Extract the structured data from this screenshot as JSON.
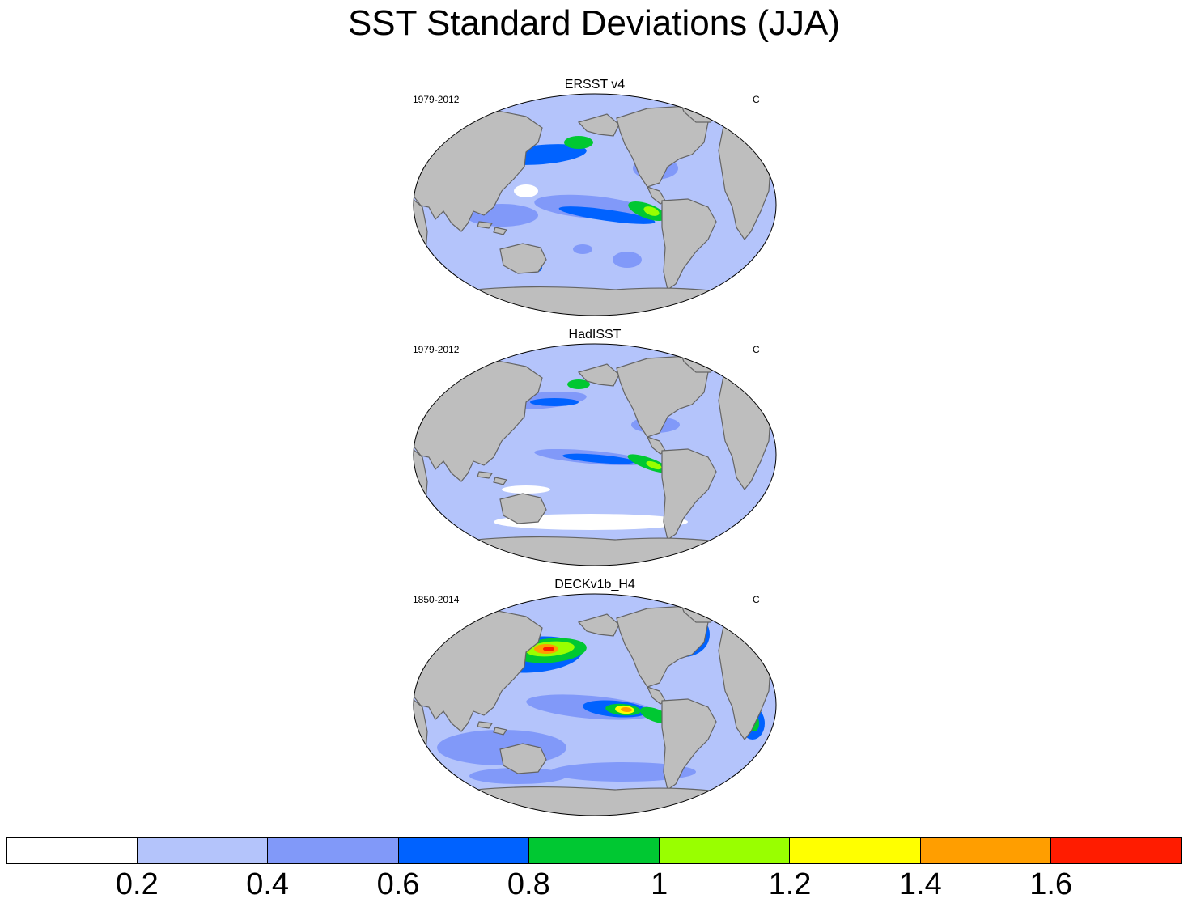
{
  "title": "SST Standard Deviations (JJA)",
  "panels": [
    {
      "title": "ERSST v4",
      "period": "1979-2012",
      "units": "C"
    },
    {
      "title": "HadISST",
      "period": "1979-2012",
      "units": "C"
    },
    {
      "title": "DECKv1b_H4",
      "period": "1850-2014",
      "units": "C"
    }
  ],
  "colorbar": {
    "colors": [
      "#ffffff",
      "#b4c4fb",
      "#8199f9",
      "#0062ff",
      "#00c832",
      "#99ff00",
      "#ffff00",
      "#ff9e00",
      "#ff1c00"
    ],
    "tick_labels": [
      "0.2",
      "0.4",
      "0.6",
      "0.8",
      "1",
      "1.2",
      "1.4",
      "1.6"
    ]
  },
  "colors": {
    "land": "#bebebe",
    "coastline": "#646464",
    "ocean_base": "#b4c4fb"
  }
}
